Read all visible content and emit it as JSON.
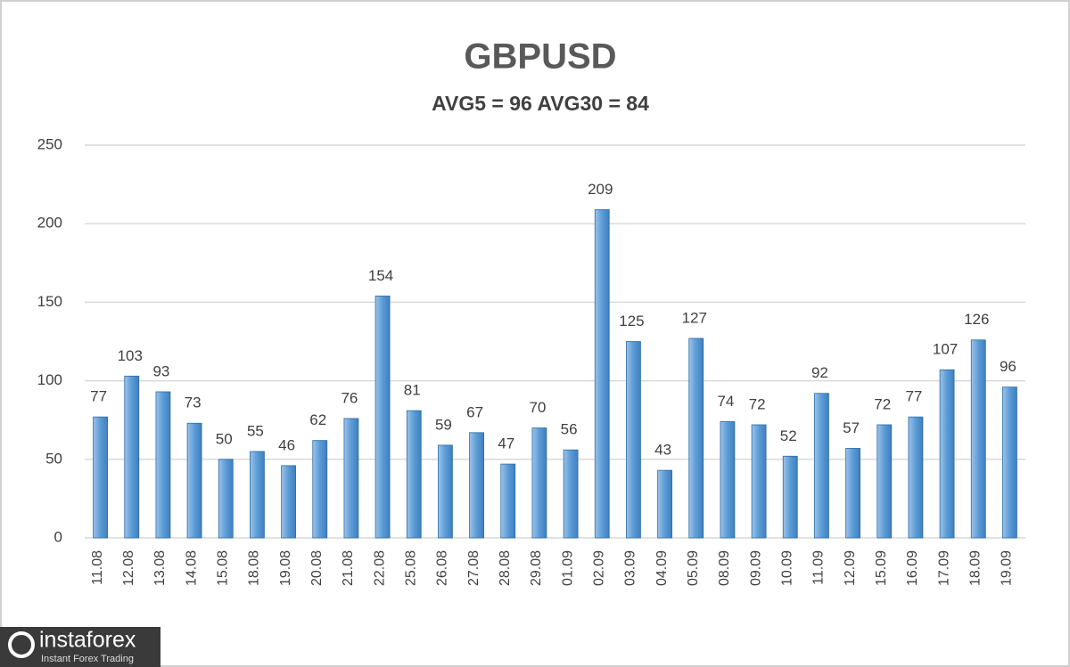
{
  "chart_data": {
    "type": "bar",
    "title": "GBPUSD",
    "subtitle": "AVG5 = 96 AVG30 = 84",
    "categories": [
      "11.08",
      "12.08",
      "13.08",
      "14.08",
      "15.08",
      "18.08",
      "19.08",
      "20.08",
      "21.08",
      "22.08",
      "25.08",
      "26.08",
      "27.08",
      "28.08",
      "29.08",
      "01.09",
      "02.09",
      "03.09",
      "04.09",
      "05.09",
      "08.09",
      "09.09",
      "10.09",
      "11.09",
      "12.09",
      "15.09",
      "16.09",
      "17.09",
      "18.09",
      "19.09"
    ],
    "values": [
      77,
      103,
      93,
      73,
      50,
      55,
      46,
      62,
      76,
      154,
      81,
      59,
      67,
      47,
      70,
      56,
      209,
      125,
      43,
      127,
      74,
      72,
      52,
      92,
      57,
      72,
      77,
      107,
      126,
      96
    ],
    "color": "#5b9bd5",
    "ylim": [
      0,
      250
    ],
    "yticks": [
      0,
      50,
      100,
      150,
      200,
      250
    ],
    "grid": true
  },
  "watermark": {
    "brand": "instaforex",
    "tagline": "Instant Forex Trading"
  }
}
